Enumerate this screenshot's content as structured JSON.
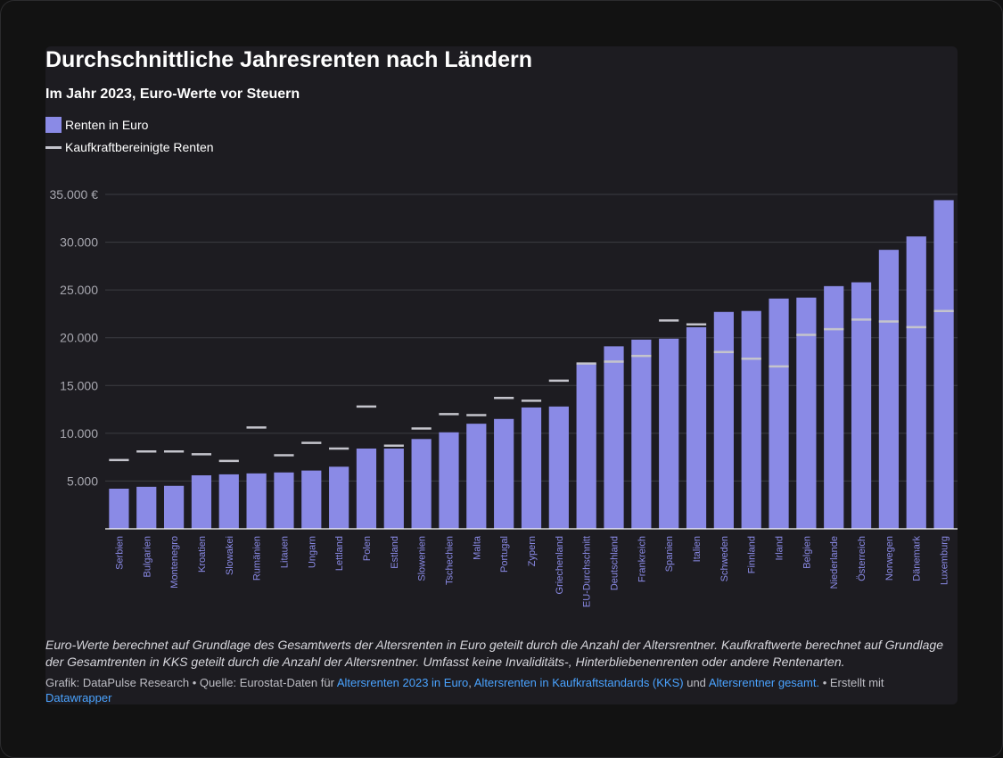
{
  "colors": {
    "background": "#121212",
    "card": "#1d1c21",
    "bar": "#8a8ae6",
    "marker": "#c4c4cc",
    "link": "#4aa3ff"
  },
  "chart_data": {
    "type": "bar",
    "title": "Durchschnittliche Jahresrenten nach Ländern",
    "subtitle": "Im Jahr 2023, Euro-Werte vor Steuern",
    "xlabel": "",
    "ylabel": "",
    "ylim": [
      0,
      35000
    ],
    "grid": true,
    "legend": [
      "Renten in Euro",
      "Kaufkraftbereinigte Renten"
    ],
    "y_ticks": [
      {
        "value": 5000,
        "label": "5.000"
      },
      {
        "value": 10000,
        "label": "10.000"
      },
      {
        "value": 15000,
        "label": "15.000"
      },
      {
        "value": 20000,
        "label": "20.000"
      },
      {
        "value": 25000,
        "label": "25.000"
      },
      {
        "value": 30000,
        "label": "30.000"
      },
      {
        "value": 35000,
        "label": "35.000 €"
      }
    ],
    "categories": [
      "Serbien",
      "Bulgarien",
      "Montenegro",
      "Kroatien",
      "Slowakei",
      "Rumänien",
      "Litauen",
      "Ungarn",
      "Lettland",
      "Polen",
      "Estland",
      "Slowenien",
      "Tschechien",
      "Malta",
      "Portugal",
      "Zypern",
      "Griechenland",
      "EU-Durchschnitt",
      "Deutschland",
      "Frankreich",
      "Spanien",
      "Italien",
      "Schweden",
      "Finnland",
      "Irland",
      "Belgien",
      "Niederlande",
      "Österreich",
      "Norwegen",
      "Dänemark",
      "Luxemburg"
    ],
    "series": [
      {
        "name": "Renten in Euro",
        "values": [
          4200,
          4400,
          4500,
          5600,
          5700,
          5800,
          5900,
          6100,
          6500,
          8400,
          8400,
          9400,
          10100,
          11000,
          11500,
          12700,
          12800,
          17300,
          19100,
          19800,
          19900,
          21100,
          22700,
          22800,
          24100,
          24200,
          25400,
          25800,
          29200,
          30600,
          34400
        ]
      },
      {
        "name": "Kaufkraftbereinigte Renten",
        "values": [
          7200,
          8100,
          8100,
          7800,
          7100,
          10600,
          7700,
          9000,
          8400,
          12800,
          8700,
          10500,
          12000,
          11900,
          13700,
          13400,
          15500,
          17300,
          17500,
          18100,
          21800,
          21400,
          18500,
          17800,
          17000,
          20300,
          20900,
          21900,
          21700,
          21100,
          22800
        ]
      }
    ]
  },
  "notes": "Euro-Werte berechnet auf Grundlage des Gesamtwerts der Altersrenten in Euro geteilt durch die Anzahl der Altersrentner. Kaufkraftwerte berechnet auf Grundlage der Gesamtrenten in KKS geteilt durch die Anzahl der Altersrentner. Umfasst keine Invaliditäts-, Hinterbliebenenrenten oder andere Rentenarten.",
  "credits": {
    "prefix": "Grafik: DataPulse Research • Quelle: Eurostat-Daten für ",
    "link1": "Altersrenten 2023 in Euro",
    "sep1": ", ",
    "link2": "Altersrenten in Kaufkraftstandards (KKS)",
    "sep2": " und ",
    "link3": "Altersrentner gesamt.",
    "suffix": " • Erstellt mit ",
    "link4": "Datawrapper"
  }
}
